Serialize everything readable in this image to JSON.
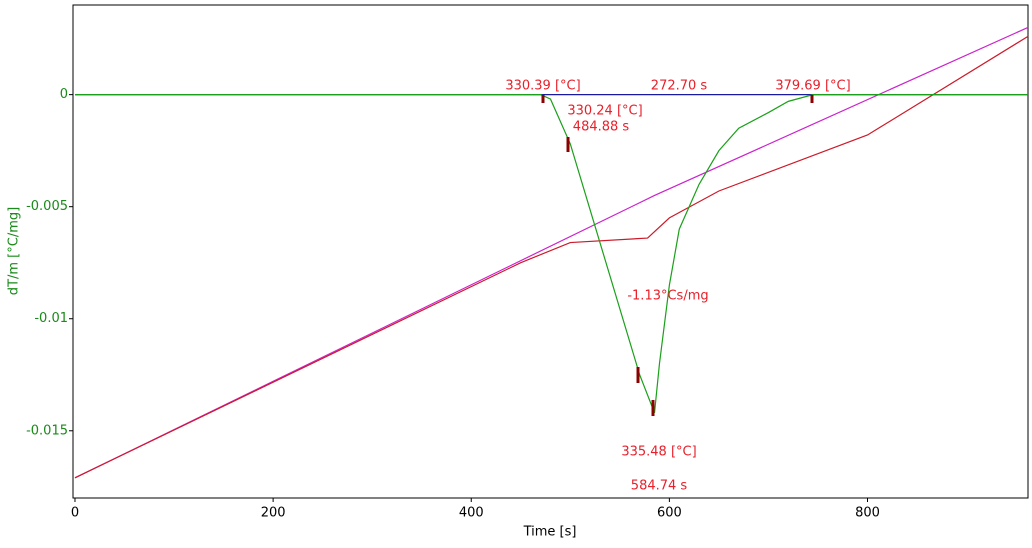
{
  "chart_data": {
    "type": "line",
    "xlabel": "Time [s]",
    "ylabel": "dT/m  [°C/mg]",
    "xlim": [
      -2,
      962
    ],
    "ylim": [
      -0.018,
      0.004
    ],
    "xticks": [
      0,
      200,
      400,
      600,
      800
    ],
    "yticks": [
      0,
      -0.005,
      -0.01,
      -0.015
    ],
    "series": [
      {
        "color": "#1a1aa0",
        "x": [
          0,
          962
        ],
        "values": [
          0,
          0
        ]
      },
      {
        "color": "#cc22cc",
        "x": [
          0,
          585,
          962
        ],
        "values": [
          -0.0171,
          -0.0045,
          0.003
        ]
      },
      {
        "color": "#cc1a2a",
        "x": [
          0,
          450,
          500,
          578,
          600,
          650,
          800,
          962
        ],
        "values": [
          -0.0171,
          -0.0075,
          -0.0066,
          -0.0064,
          -0.0055,
          -0.0043,
          -0.0018,
          0.0026
        ]
      },
      {
        "color": "#1aa01a",
        "x": [
          0,
          470,
          480,
          500,
          570,
          585,
          590,
          600,
          610,
          630,
          650,
          670,
          700,
          720,
          745,
          962
        ],
        "values": [
          0,
          0,
          -0.0002,
          -0.0022,
          -0.0125,
          -0.0142,
          -0.012,
          -0.0085,
          -0.006,
          -0.004,
          -0.0025,
          -0.0015,
          -0.0008,
          -0.0003,
          0,
          0
        ]
      }
    ],
    "annotations": [
      "330.39 [°C]",
      "272.70 s",
      "379.69 [°C]",
      "330.24 [°C]",
      "484.88 s",
      "-1.13°Cs/mg",
      "335.48 [°C]",
      "584.74 s"
    ]
  }
}
